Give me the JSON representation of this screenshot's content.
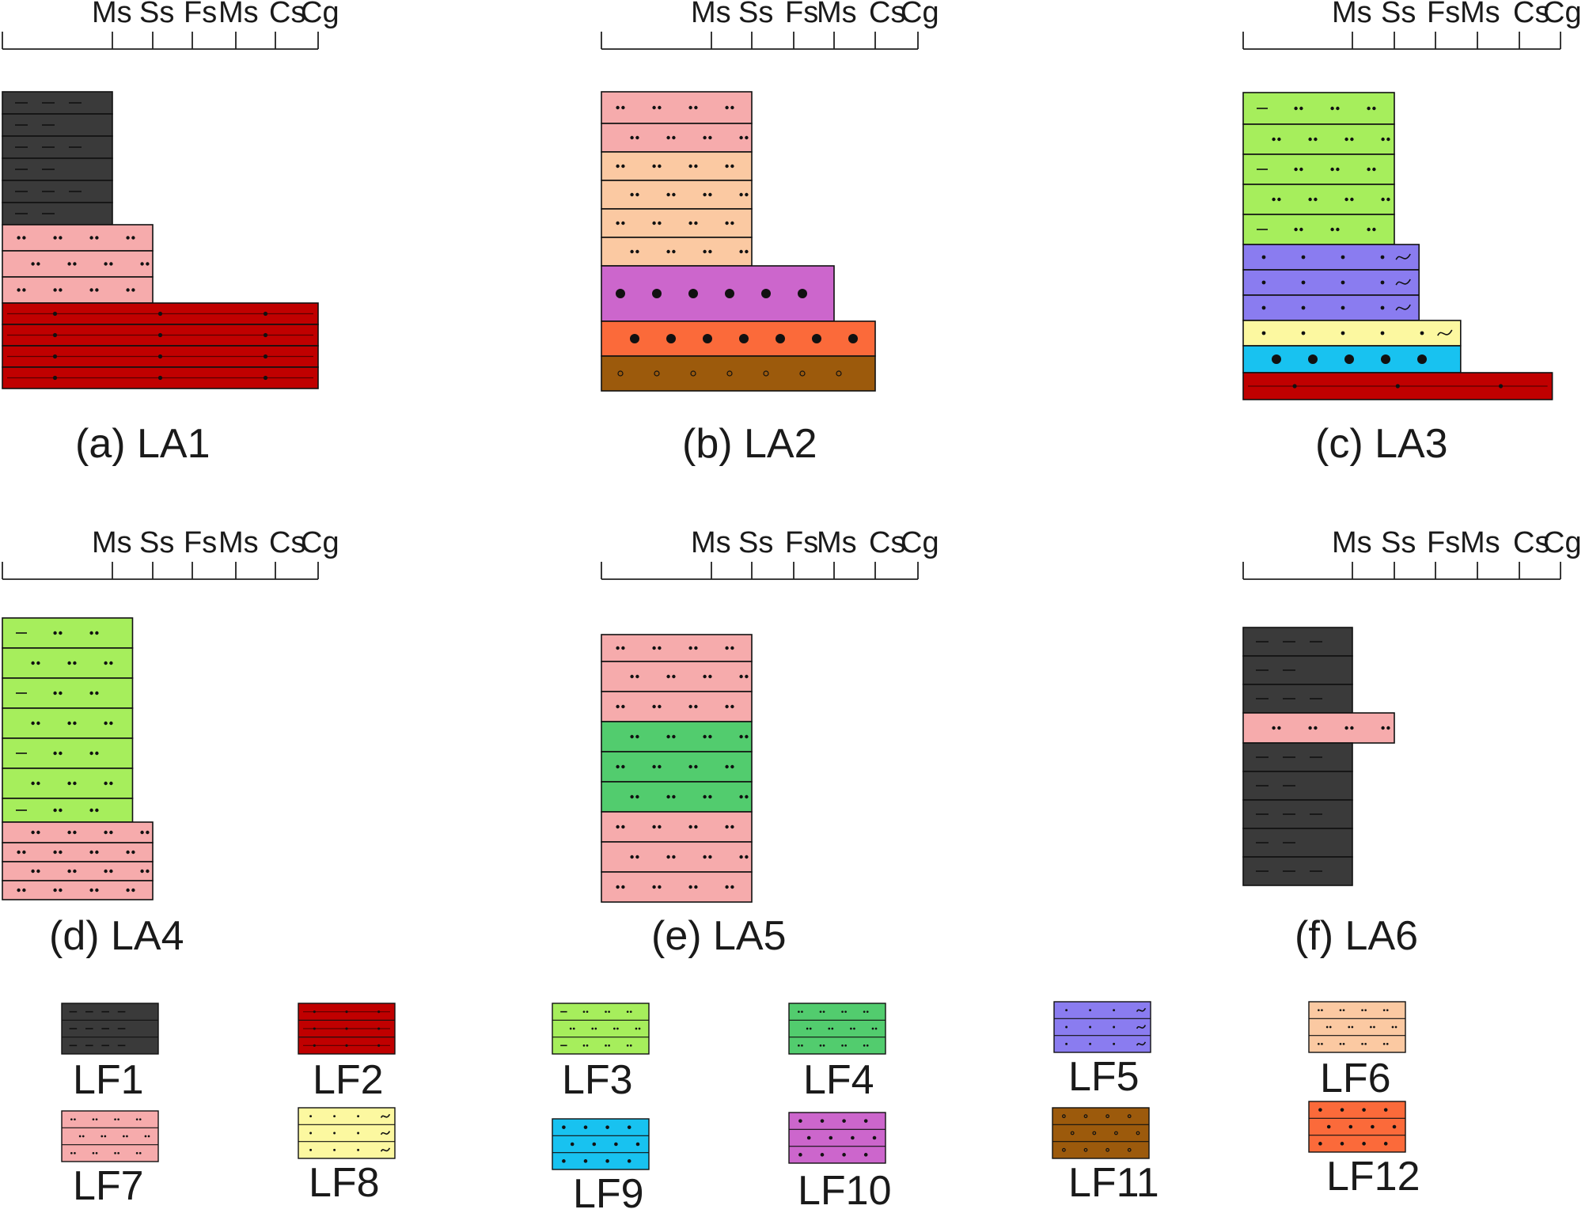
{
  "scale_labels": [
    "Ms",
    "Ss",
    "Fs",
    "Ms",
    "Cs",
    "Cg"
  ],
  "columns": [
    {
      "id": "a",
      "caption": "(a) LA1",
      "beds": [
        {
          "lf": "LF1",
          "width": 0
        },
        {
          "lf": "LF1",
          "width": 0
        },
        {
          "lf": "LF1",
          "width": 0
        },
        {
          "lf": "LF1",
          "width": 0
        },
        {
          "lf": "LF1",
          "width": 0
        },
        {
          "lf": "LF1",
          "width": 0
        },
        {
          "lf": "LF7",
          "width": 1
        },
        {
          "lf": "LF7",
          "width": 1
        },
        {
          "lf": "LF7",
          "width": 1
        },
        {
          "lf": "LF2",
          "width": 5
        },
        {
          "lf": "LF2",
          "width": 5
        },
        {
          "lf": "LF2",
          "width": 5
        },
        {
          "lf": "LF2",
          "width": 5
        }
      ]
    },
    {
      "id": "b",
      "caption": "(b) LA2",
      "beds": [
        {
          "lf": "LF7",
          "width": 1
        },
        {
          "lf": "LF7",
          "width": 1
        },
        {
          "lf": "LF6",
          "width": 1
        },
        {
          "lf": "LF6",
          "width": 1
        },
        {
          "lf": "LF6",
          "width": 1
        },
        {
          "lf": "LF6",
          "width": 1
        },
        {
          "lf": "LF10",
          "width": 3
        },
        {
          "lf": "LF12",
          "width": 4
        },
        {
          "lf": "LF11",
          "width": 4
        }
      ]
    },
    {
      "id": "c",
      "caption": "(c) LA3",
      "beds": [
        {
          "lf": "LF3",
          "width": 1
        },
        {
          "lf": "LF3",
          "width": 1
        },
        {
          "lf": "LF3",
          "width": 1
        },
        {
          "lf": "LF3",
          "width": 1
        },
        {
          "lf": "LF3",
          "width": 1
        },
        {
          "lf": "LF5",
          "width": 1.6
        },
        {
          "lf": "LF5",
          "width": 1.6
        },
        {
          "lf": "LF5",
          "width": 1.6
        },
        {
          "lf": "LF8",
          "width": 2.6
        },
        {
          "lf": "LF9",
          "width": 2.6
        },
        {
          "lf": "LF2",
          "width": 4.8
        }
      ]
    },
    {
      "id": "d",
      "caption": "(d) LA4",
      "beds": [
        {
          "lf": "LF3",
          "width": 0.5
        },
        {
          "lf": "LF3",
          "width": 0.5
        },
        {
          "lf": "LF3",
          "width": 0.5
        },
        {
          "lf": "LF3",
          "width": 0.5
        },
        {
          "lf": "LF3",
          "width": 0.5
        },
        {
          "lf": "LF3",
          "width": 0.5
        },
        {
          "lf": "LF3",
          "width": 0.5
        },
        {
          "lf": "LF7",
          "width": 1
        },
        {
          "lf": "LF7",
          "width": 1
        },
        {
          "lf": "LF7",
          "width": 1
        },
        {
          "lf": "LF7",
          "width": 1
        }
      ]
    },
    {
      "id": "e",
      "caption": "(e) LA5",
      "beds": [
        {
          "lf": "LF7",
          "width": 1
        },
        {
          "lf": "LF7",
          "width": 1
        },
        {
          "lf": "LF7",
          "width": 1
        },
        {
          "lf": "LF4",
          "width": 1
        },
        {
          "lf": "LF4",
          "width": 1
        },
        {
          "lf": "LF4",
          "width": 1
        },
        {
          "lf": "LF7",
          "width": 1
        },
        {
          "lf": "LF7",
          "width": 1
        },
        {
          "lf": "LF7",
          "width": 1
        }
      ]
    },
    {
      "id": "f",
      "caption": "(f) LA6",
      "beds": [
        {
          "lf": "LF1",
          "width": 0
        },
        {
          "lf": "LF1",
          "width": 0
        },
        {
          "lf": "LF1",
          "width": 0
        },
        {
          "lf": "LF7",
          "width": 1
        },
        {
          "lf": "LF1",
          "width": 0
        },
        {
          "lf": "LF1",
          "width": 0
        },
        {
          "lf": "LF1",
          "width": 0
        },
        {
          "lf": "LF1",
          "width": 0
        },
        {
          "lf": "LF1",
          "width": 0
        }
      ]
    }
  ],
  "legend": [
    {
      "code": "LF1",
      "label": "LF1",
      "color": "#3a3a3a",
      "pattern": "dashes"
    },
    {
      "code": "LF2",
      "label": "LF2",
      "color": "#c00000",
      "pattern": "dot-line"
    },
    {
      "code": "LF3",
      "label": "LF3",
      "color": "#a6ee5c",
      "pattern": "dash-double-dot"
    },
    {
      "code": "LF4",
      "label": "LF4",
      "color": "#52cc6e",
      "pattern": "double-dot"
    },
    {
      "code": "LF5",
      "label": "LF5",
      "color": "#8a7cf0",
      "pattern": "dot-wave"
    },
    {
      "code": "LF6",
      "label": "LF6",
      "color": "#fbc9a2",
      "pattern": "double-dot"
    },
    {
      "code": "LF7",
      "label": "LF7",
      "color": "#f6abac",
      "pattern": "double-dot"
    },
    {
      "code": "LF8",
      "label": "LF8",
      "color": "#fcf8a0",
      "pattern": "dot-wave"
    },
    {
      "code": "LF9",
      "label": "LF9",
      "color": "#18c2f0",
      "pattern": "dot"
    },
    {
      "code": "LF10",
      "label": "LF10",
      "color": "#cc66cc",
      "pattern": "dot"
    },
    {
      "code": "LF11",
      "label": "LF11",
      "color": "#9c5a0c",
      "pattern": "circle"
    },
    {
      "code": "LF12",
      "label": "LF12",
      "color": "#fb6a3a",
      "pattern": "dot"
    }
  ]
}
